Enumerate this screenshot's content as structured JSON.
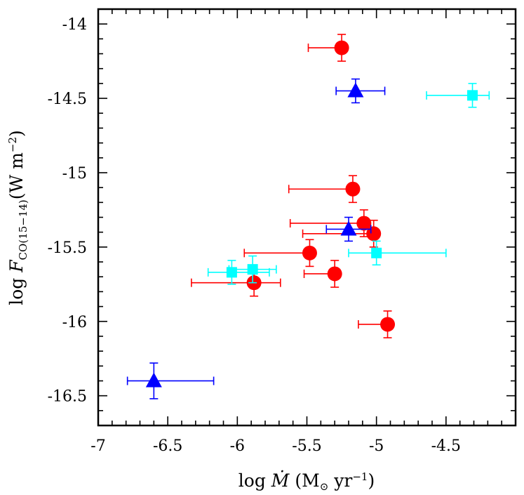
{
  "chart_data": {
    "type": "scatter",
    "title": "",
    "xlabel": "log Ṁ (M⊙ yr⁻¹)",
    "ylabel": "log F_CO(15–14) (W m⁻²)",
    "xlim": [
      -7,
      -4
    ],
    "ylim": [
      -16.7,
      -13.9
    ],
    "grid": false,
    "legend": "none",
    "x_ticks": [
      {
        "value": -7,
        "label": "-7"
      },
      {
        "value": -6.5,
        "label": "-6.5"
      },
      {
        "value": -6,
        "label": "-6"
      },
      {
        "value": -5.5,
        "label": "-5.5"
      },
      {
        "value": -5,
        "label": "-5"
      },
      {
        "value": -4.5,
        "label": "-4.5"
      }
    ],
    "y_ticks": [
      {
        "value": -14,
        "label": "-14"
      },
      {
        "value": -14.5,
        "label": "-14.5"
      },
      {
        "value": -15,
        "label": "-15"
      },
      {
        "value": -15.5,
        "label": "-15.5"
      },
      {
        "value": -16,
        "label": "-16"
      },
      {
        "value": -16.5,
        "label": "-16.5"
      }
    ],
    "series": [
      {
        "marker": "circle",
        "color": "#ff0000",
        "points": [
          {
            "x": -5.25,
            "y": -14.16,
            "xerr": [
              0.24,
              0
            ],
            "yerr": 0.09
          },
          {
            "x": -5.17,
            "y": -15.11,
            "xerr": [
              0.46,
              0
            ],
            "yerr": 0.09
          },
          {
            "x": -5.09,
            "y": -15.34,
            "xerr": [
              0.53,
              0
            ],
            "yerr": 0.09
          },
          {
            "x": -5.02,
            "y": -15.41,
            "xerr": [
              0.51,
              0
            ],
            "yerr": 0.09
          },
          {
            "x": -5.48,
            "y": -15.54,
            "xerr": [
              0.47,
              0
            ],
            "yerr": 0.09
          },
          {
            "x": -5.3,
            "y": -15.68,
            "xerr": [
              0.22,
              0
            ],
            "yerr": 0.09
          },
          {
            "x": -5.88,
            "y": -15.74,
            "xerr": [
              0.45,
              0.19
            ],
            "yerr": 0.09
          },
          {
            "x": -4.92,
            "y": -16.02,
            "xerr": [
              0.21,
              0
            ],
            "yerr": 0.09
          }
        ]
      },
      {
        "marker": "triangle",
        "color": "#0000ff",
        "points": [
          {
            "x": -5.15,
            "y": -14.45,
            "xerr": [
              0.14,
              0.21
            ],
            "yerr": 0.08
          },
          {
            "x": -5.2,
            "y": -15.38,
            "xerr": [
              0.16,
              0.16
            ],
            "yerr": 0.08
          },
          {
            "x": -6.6,
            "y": -16.4,
            "xerr": [
              0.19,
              0.43
            ],
            "yerr": 0.12
          }
        ]
      },
      {
        "marker": "square",
        "color": "#00ffff",
        "points": [
          {
            "x": -4.31,
            "y": -14.48,
            "xerr": [
              0.33,
              0.12
            ],
            "yerr": 0.08
          },
          {
            "x": -5.0,
            "y": -15.54,
            "xerr": [
              0.2,
              0.5
            ],
            "yerr": 0.08
          },
          {
            "x": -6.04,
            "y": -15.67,
            "xerr": [
              0.17,
              0.27
            ],
            "yerr": 0.08
          },
          {
            "x": -5.89,
            "y": -15.65,
            "xerr": [
              0.17,
              0.17
            ],
            "yerr": 0.09
          }
        ]
      }
    ]
  }
}
